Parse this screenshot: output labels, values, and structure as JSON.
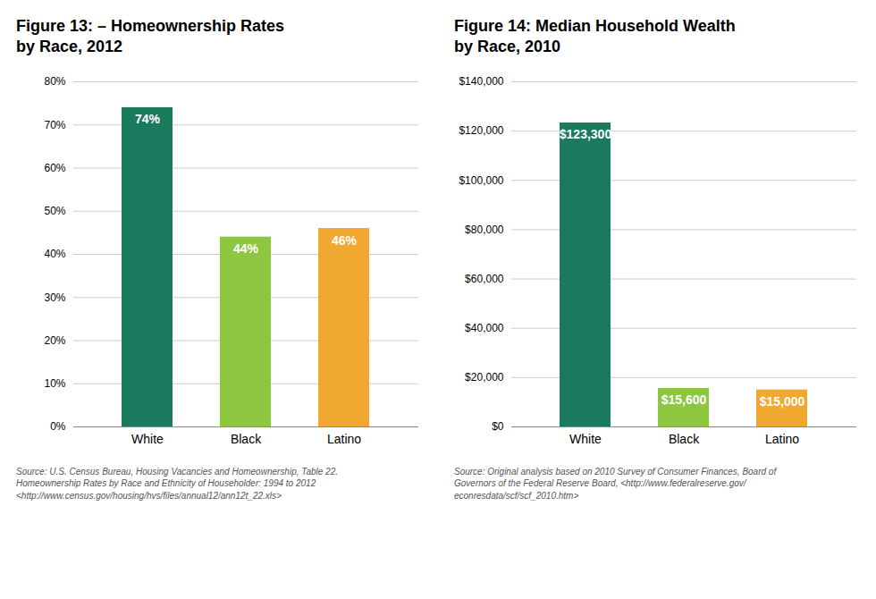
{
  "chart_data": [
    {
      "type": "bar",
      "title": "Figure 13: – Homeownership Rates\nby Race, 2012",
      "categories": [
        "White",
        "Black",
        "Latino"
      ],
      "values": [
        0.74,
        0.44,
        0.46
      ],
      "value_labels": [
        "74%",
        "44%",
        "46%"
      ],
      "data_labels": true,
      "colors": [
        "#1a7a5e",
        "#8dc63f",
        "#f0a830"
      ],
      "ylim": [
        0,
        0.8
      ],
      "yticks": [
        {
          "value": 0.0,
          "label": "0%"
        },
        {
          "value": 0.1,
          "label": "10%"
        },
        {
          "value": 0.2,
          "label": "20%"
        },
        {
          "value": 0.3,
          "label": "30%"
        },
        {
          "value": 0.4,
          "label": "40%"
        },
        {
          "value": 0.5,
          "label": "50%"
        },
        {
          "value": 0.6,
          "label": "60%"
        },
        {
          "value": 0.7,
          "label": "70%"
        },
        {
          "value": 0.8,
          "label": "80%"
        }
      ],
      "grid": true,
      "annotations": [
        "Source: U.S. Census Bureau, Housing Vacancies and Homeownership, Table 22.\nHomeownership Rates by Race and Ethnicity of Householder: 1994 to 2012\n<http://www.census.gov/housing/hvs/files/annual12/ann12t_22.xls>"
      ]
    },
    {
      "type": "bar",
      "title": "Figure 14: Median Household Wealth\nby Race, 2010",
      "categories": [
        "White",
        "Black",
        "Latino"
      ],
      "values": [
        123300,
        15600,
        15000
      ],
      "value_labels": [
        "$123,300",
        "$15,600",
        "$15,000"
      ],
      "data_labels": true,
      "colors": [
        "#1a7a5e",
        "#8dc63f",
        "#f0a830"
      ],
      "ylim": [
        0,
        140000
      ],
      "yticks": [
        {
          "value": 0,
          "label": "$0"
        },
        {
          "value": 20000,
          "label": "$20,000"
        },
        {
          "value": 40000,
          "label": "$40,000"
        },
        {
          "value": 60000,
          "label": "$60,000"
        },
        {
          "value": 80000,
          "label": "$80,000"
        },
        {
          "value": 100000,
          "label": "$100,000"
        },
        {
          "value": 120000,
          "label": "$120,000"
        },
        {
          "value": 140000,
          "label": "$140,000"
        }
      ],
      "grid": true,
      "annotations": [
        "Source: Original analysis based on 2010 Survey of Consumer Finances, Board of\nGovernors of the Federal Reserve Board, <http://www.federalreserve.gov/\neconresdata/scf/scf_2010.htm>"
      ]
    }
  ]
}
